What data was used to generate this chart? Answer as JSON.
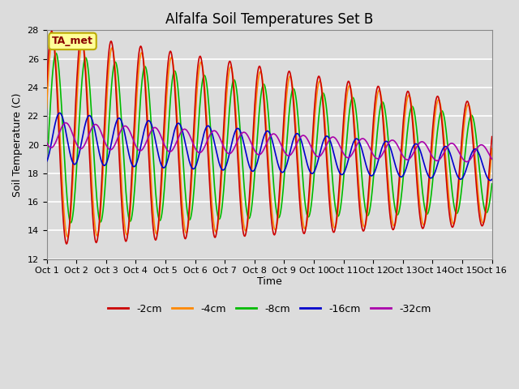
{
  "title": "Alfalfa Soil Temperatures Set B",
  "xlabel": "Time",
  "ylabel": "Soil Temperature (C)",
  "ylim": [
    12,
    28
  ],
  "yticks": [
    12,
    14,
    16,
    18,
    20,
    22,
    24,
    26,
    28
  ],
  "xtick_labels": [
    "Oct 1",
    "Oct 2",
    "Oct 3",
    "Oct 4",
    "Oct 5",
    "Oct 6",
    "Oct 7",
    "Oct 8",
    "Oct 9",
    "Oct 10",
    "Oct 11",
    "Oct 12",
    "Oct 13",
    "Oct 14",
    "Oct 15",
    "Oct 16"
  ],
  "series_labels": [
    "-2cm",
    "-4cm",
    "-8cm",
    "-16cm",
    "-32cm"
  ],
  "series_colors": [
    "#cc0000",
    "#ff8800",
    "#00bb00",
    "#0000cc",
    "#aa00aa"
  ],
  "annotation_text": "TA_met",
  "annotation_bg": "#ffff99",
  "annotation_border": "#bbaa00",
  "background_color": "#dcdcdc",
  "grid_color": "#ffffff",
  "title_fontsize": 12,
  "axis_label_fontsize": 9,
  "tick_fontsize": 8,
  "legend_fontsize": 9
}
